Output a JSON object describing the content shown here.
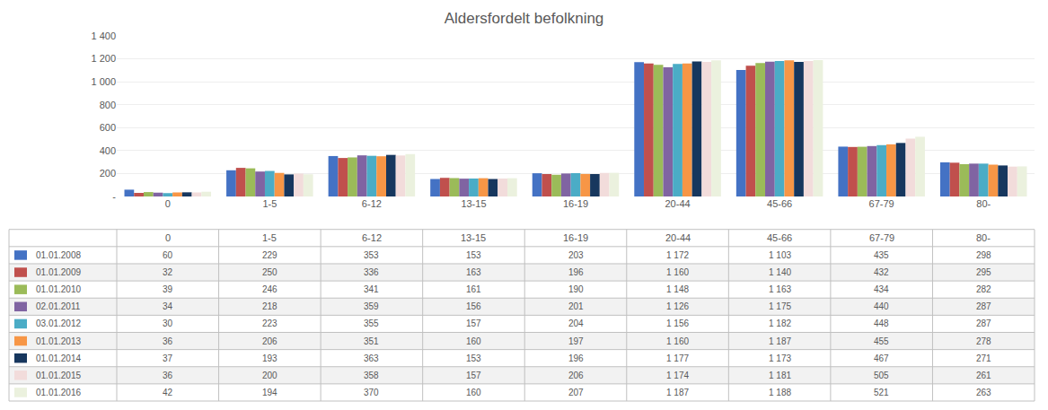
{
  "chart_data": {
    "type": "bar",
    "title": "Aldersfordelt befolkning",
    "categories": [
      "0",
      "1-5",
      "6-12",
      "13-15",
      "16-19",
      "20-44",
      "45-66",
      "67-79",
      "80-"
    ],
    "series": [
      {
        "name": "01.01.2008",
        "color": "#4472C4",
        "values": [
          60,
          229,
          353,
          153,
          203,
          1172,
          1103,
          435,
          298
        ],
        "value_labels": [
          "60",
          "229",
          "353",
          "153",
          "203",
          "1 172",
          "1 103",
          "435",
          "298"
        ]
      },
      {
        "name": "01.01.2009",
        "color": "#C0504D",
        "values": [
          32,
          250,
          336,
          163,
          196,
          1160,
          1140,
          432,
          295
        ],
        "value_labels": [
          "32",
          "250",
          "336",
          "163",
          "196",
          "1 160",
          "1 140",
          "432",
          "295"
        ]
      },
      {
        "name": "01.01.2010",
        "color": "#9BBB59",
        "values": [
          39,
          246,
          341,
          161,
          190,
          1148,
          1163,
          434,
          282
        ],
        "value_labels": [
          "39",
          "246",
          "341",
          "161",
          "190",
          "1 148",
          "1 163",
          "434",
          "282"
        ]
      },
      {
        "name": "02.01.2011",
        "color": "#8064A2",
        "values": [
          34,
          218,
          359,
          156,
          201,
          1126,
          1175,
          440,
          287
        ],
        "value_labels": [
          "34",
          "218",
          "359",
          "156",
          "201",
          "1 126",
          "1 175",
          "440",
          "287"
        ]
      },
      {
        "name": "03.01.2012",
        "color": "#4BACC6",
        "values": [
          30,
          223,
          355,
          157,
          204,
          1156,
          1182,
          448,
          287
        ],
        "value_labels": [
          "30",
          "223",
          "355",
          "157",
          "204",
          "1 156",
          "1 182",
          "448",
          "287"
        ]
      },
      {
        "name": "01.01.2013",
        "color": "#F79646",
        "values": [
          36,
          206,
          351,
          160,
          197,
          1160,
          1187,
          455,
          278
        ],
        "value_labels": [
          "36",
          "206",
          "351",
          "160",
          "197",
          "1 160",
          "1 187",
          "455",
          "278"
        ]
      },
      {
        "name": "01.01.2014",
        "color": "#17375E",
        "values": [
          37,
          193,
          363,
          153,
          196,
          1177,
          1173,
          467,
          271
        ],
        "value_labels": [
          "37",
          "193",
          "363",
          "153",
          "196",
          "1 177",
          "1 173",
          "467",
          "271"
        ]
      },
      {
        "name": "01.01.2015",
        "color": "#F2DCDB",
        "values": [
          36,
          200,
          358,
          157,
          206,
          1174,
          1181,
          505,
          261
        ],
        "value_labels": [
          "36",
          "200",
          "358",
          "157",
          "206",
          "1 174",
          "1 181",
          "505",
          "261"
        ]
      },
      {
        "name": "01.01.2016",
        "color": "#EBF1DE",
        "values": [
          42,
          194,
          370,
          160,
          207,
          1187,
          1188,
          521,
          263
        ],
        "value_labels": [
          "42",
          "194",
          "370",
          "160",
          "207",
          "1 187",
          "1 188",
          "521",
          "263"
        ]
      }
    ],
    "ylim": [
      0,
      1400
    ],
    "yticks": [
      {
        "value": 0,
        "label": "-"
      },
      200,
      400,
      600,
      800,
      {
        "value": 1000,
        "label": "1 000"
      },
      {
        "value": 1200,
        "label": "1 200"
      },
      {
        "value": 1400,
        "label": "1 400"
      }
    ],
    "grid": true
  }
}
